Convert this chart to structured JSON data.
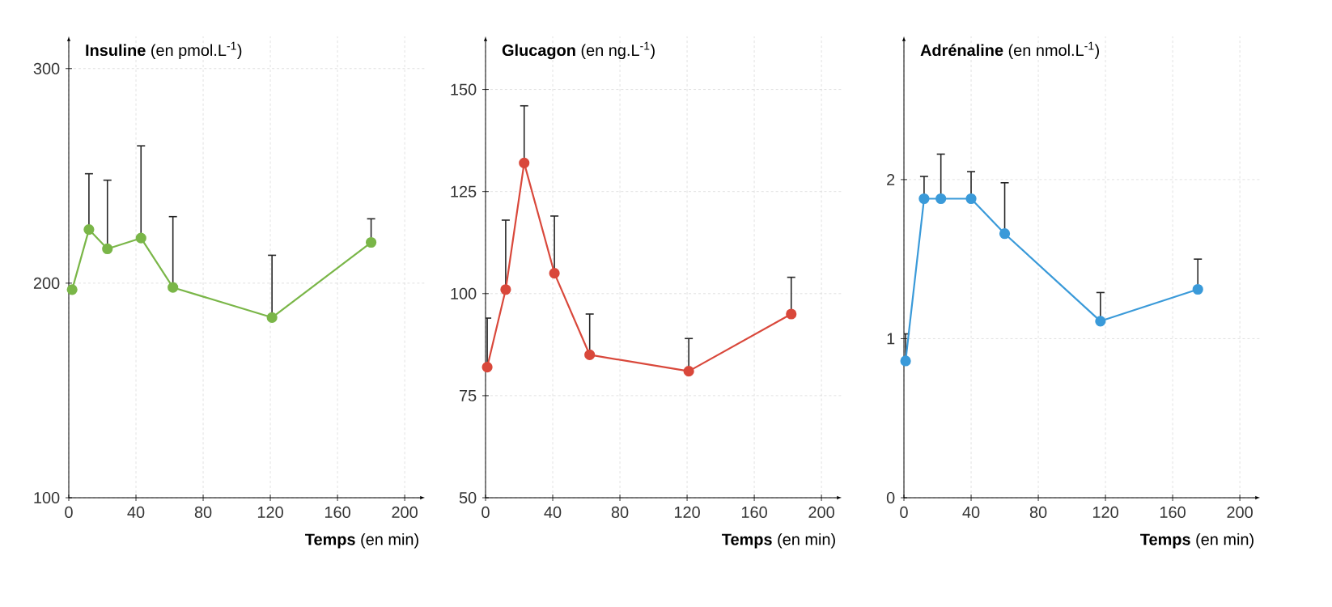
{
  "chart_data": [
    {
      "type": "line",
      "ylabel": "**Insuline** (en pmol.L$^{-1}$)",
      "xlabel": "**Temps** (en min)",
      "x": [
        2,
        12,
        23,
        43,
        62,
        121,
        180
      ],
      "xlim": [
        0,
        212
      ],
      "xticks": [
        0,
        40,
        80,
        120,
        160,
        200
      ],
      "ylim": [
        100,
        315
      ],
      "yticks": [
        100,
        200,
        300
      ],
      "grid": true,
      "marker": "circle",
      "series": [
        {
          "color": "#7ab648",
          "values": [
            197,
            225,
            216,
            221,
            198,
            184,
            219
          ],
          "errors": [
            null,
            [
              225,
              251
            ],
            [
              216,
              248
            ],
            [
              221,
              264
            ],
            [
              198,
              231
            ],
            [
              184,
              213
            ],
            [
              219,
              230
            ]
          ]
        }
      ]
    },
    {
      "type": "line",
      "ylabel": "**Glucagon** (en ng.L$^{-1}$)",
      "xlabel": "**Temps** (en min)",
      "x": [
        1,
        12,
        23,
        41,
        62,
        121,
        182
      ],
      "xlim": [
        0,
        212
      ],
      "xticks": [
        0,
        40,
        80,
        120,
        160,
        200
      ],
      "ylim": [
        50,
        163
      ],
      "yticks": [
        50,
        75,
        100,
        125,
        150
      ],
      "grid": true,
      "marker": "circle",
      "series": [
        {
          "color": "#d9483b",
          "values": [
            82,
            101,
            132,
            105,
            85,
            81,
            95
          ],
          "errors": [
            [
              82,
              94
            ],
            [
              101,
              118
            ],
            [
              132,
              146
            ],
            [
              105,
              119
            ],
            [
              85,
              95
            ],
            [
              81,
              89
            ],
            [
              95,
              104
            ]
          ]
        }
      ]
    },
    {
      "type": "line",
      "ylabel": "**Adrénaline** (en nmol.L$^{-1}$)",
      "xlabel": "**Temps** (en min)",
      "x": [
        1,
        12,
        22,
        40,
        60,
        117,
        175
      ],
      "xlim": [
        0,
        212
      ],
      "xticks": [
        0,
        40,
        80,
        120,
        160,
        200
      ],
      "ylim": [
        0,
        2.9
      ],
      "yticks": [
        0,
        1,
        2
      ],
      "grid": true,
      "marker": "circle",
      "series": [
        {
          "color": "#3a9ad9",
          "values": [
            0.86,
            1.88,
            1.88,
            1.88,
            1.66,
            1.11,
            1.31
          ],
          "errors": [
            [
              0.86,
              1.03
            ],
            [
              1.88,
              2.02
            ],
            [
              1.88,
              2.16
            ],
            [
              1.88,
              2.05
            ],
            [
              1.66,
              1.98
            ],
            [
              1.11,
              1.29
            ],
            [
              1.31,
              1.5
            ]
          ]
        }
      ]
    }
  ]
}
